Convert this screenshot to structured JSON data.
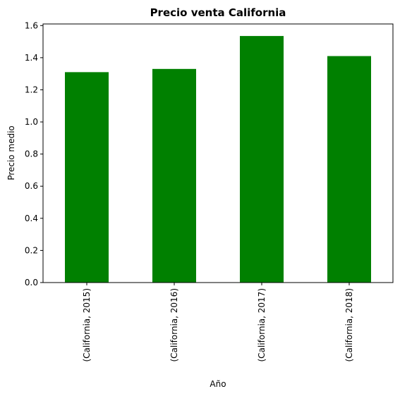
{
  "chart_data": {
    "type": "bar",
    "title": "Precio venta California",
    "xlabel": "Año",
    "ylabel": "Precio medio",
    "categories": [
      "(California, 2015)",
      "(California, 2016)",
      "(California, 2017)",
      "(California, 2018)"
    ],
    "values": [
      1.31,
      1.33,
      1.535,
      1.41
    ],
    "ylim": [
      0,
      1.61
    ],
    "yticks": [
      "0.0",
      "0.2",
      "0.4",
      "0.6",
      "0.8",
      "1.0",
      "1.2",
      "1.4",
      "1.6"
    ],
    "grid": false,
    "legend": "none",
    "colors": {
      "bar": "#008000",
      "axis": "#000000"
    }
  }
}
